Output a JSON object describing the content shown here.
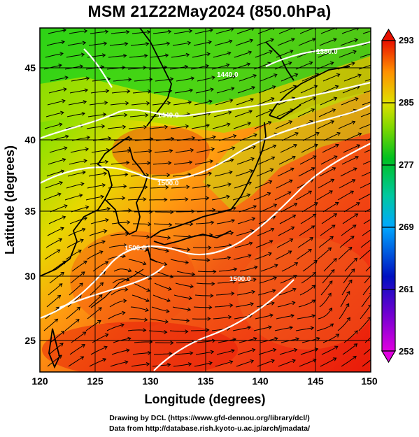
{
  "title": "MSM 21Z22May2024 (850.0hPa)",
  "credits": {
    "line1": "Drawing by DCL (https://www.gfd-dennou.org/library/dcl/)",
    "line2": "Data from http://database.rish.kyoto-u.ac.jp/arch/jmadata/"
  },
  "map": {
    "xlabel": "Longitude (degrees)",
    "ylabel": "Latitude  (degrees)",
    "lon_range": [
      120,
      150
    ],
    "lat_range": [
      22.4,
      47.6
    ],
    "lon_ticks": [
      "120",
      "125",
      "130",
      "135",
      "140",
      "145",
      "150"
    ],
    "lat_ticks": [
      "25",
      "30",
      "35",
      "40",
      "45"
    ],
    "grid": true,
    "field": "temperature with streamlines",
    "contour_labels": [
      "1380.0",
      "1440.0",
      "1500.0",
      "1500.0",
      "1440.0",
      "1500.0"
    ]
  },
  "colorbar": {
    "ticks": [
      "293",
      "285",
      "277",
      "269",
      "261",
      "253"
    ],
    "range": [
      253,
      293
    ],
    "colors": [
      "#e000e0",
      "#0000c0",
      "#00b4ff",
      "#00c060",
      "#30d000",
      "#c8e000",
      "#ff9000",
      "#ff2000",
      "#e01000"
    ]
  }
}
